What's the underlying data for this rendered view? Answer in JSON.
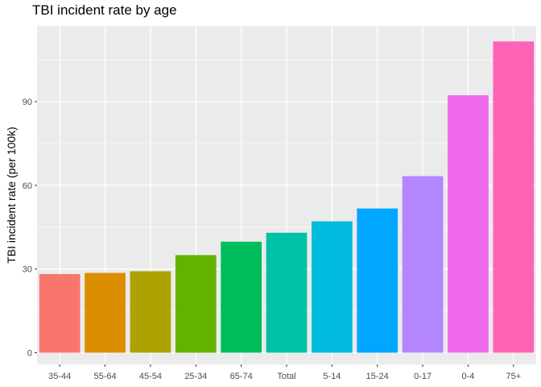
{
  "chart_data": {
    "type": "bar",
    "title": "TBI incident rate by age",
    "xlabel": "",
    "ylabel": "TBI incident rate (per 100k)",
    "categories": [
      "35-44",
      "55-64",
      "45-54",
      "25-34",
      "65-74",
      "Total",
      "5-14",
      "15-24",
      "0-17",
      "0-4",
      "75+"
    ],
    "values": [
      28.2,
      28.6,
      29.2,
      35.0,
      39.8,
      43.0,
      47.1,
      51.7,
      63.3,
      92.3,
      111.6
    ],
    "colors": [
      "#F8766D",
      "#DB8E00",
      "#AEA200",
      "#64B200",
      "#00BD5C",
      "#00C1A7",
      "#00BADE",
      "#00A6FF",
      "#B385FF",
      "#EF67EB",
      "#FF63B6"
    ],
    "yticks": [
      0,
      30,
      60,
      90
    ],
    "ylim": [
      -4.2,
      117.2
    ],
    "grid": true,
    "legend": "none"
  }
}
